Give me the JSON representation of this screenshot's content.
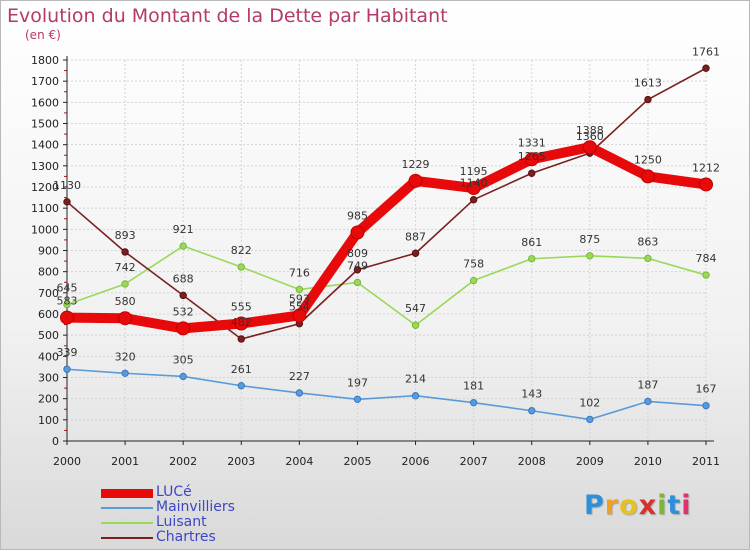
{
  "header": {
    "title": "Evolution du Montant de la Dette par Habitant",
    "unit": "(en €)"
  },
  "logo": {
    "letters": [
      "P",
      "r",
      "o",
      "x",
      "i",
      "t",
      "i"
    ],
    "colors": [
      "#2f8fd8",
      "#f0a020",
      "#e8c020",
      "#d63030",
      "#7ab830",
      "#2f8fd8",
      "#e03070"
    ]
  },
  "chart_data": {
    "type": "line",
    "title": "Evolution du Montant de la Dette par Habitant",
    "subtitle": "(en €)",
    "xlabel": "",
    "ylabel": "",
    "x": [
      "2000",
      "2001",
      "2002",
      "2003",
      "2004",
      "2005",
      "2006",
      "2007",
      "2008",
      "2009",
      "2010",
      "2011"
    ],
    "ylim": [
      0,
      1800
    ],
    "yticks": [
      0,
      100,
      200,
      300,
      400,
      500,
      600,
      700,
      800,
      900,
      1000,
      1100,
      1200,
      1300,
      1400,
      1500,
      1600,
      1700,
      1800
    ],
    "grid": true,
    "legend": "bottom-left",
    "series": [
      {
        "name": "LUCé",
        "color": "#e8090b",
        "values": [
          583,
          580,
          532,
          555,
          593,
          985,
          1229,
          1195,
          1331,
          1388,
          1250,
          1212
        ]
      },
      {
        "name": "Mainvilliers",
        "color": "#5a9ad8",
        "values": [
          339,
          320,
          305,
          261,
          227,
          197,
          214,
          181,
          143,
          102,
          187,
          167
        ]
      },
      {
        "name": "Luisant",
        "color": "#9ad85a",
        "values": [
          645,
          742,
          921,
          822,
          716,
          749,
          547,
          758,
          861,
          875,
          863,
          784
        ]
      },
      {
        "name": "Chartres",
        "color": "#7a2020",
        "values": [
          1130,
          893,
          688,
          482,
          554,
          809,
          887,
          1140,
          1265,
          1360,
          1613,
          1761
        ]
      }
    ]
  }
}
